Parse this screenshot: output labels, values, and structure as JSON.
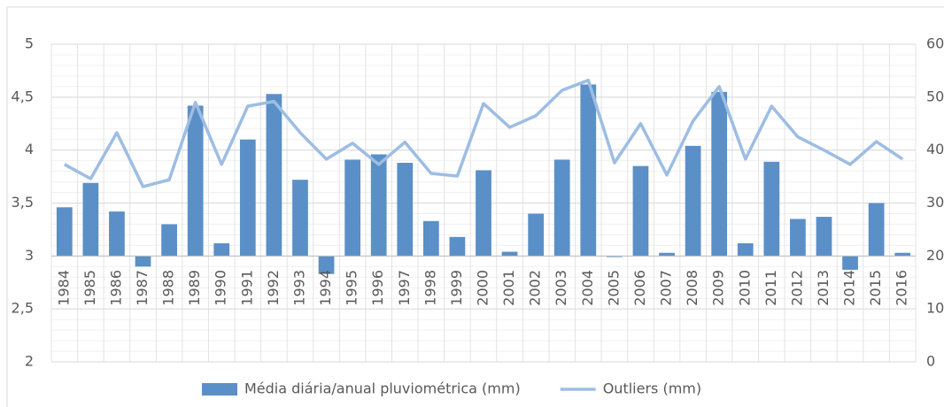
{
  "chart_data": {
    "type": "bar",
    "categories": [
      "1984",
      "1985",
      "1986",
      "1987",
      "1988",
      "1989",
      "1990",
      "1991",
      "1992",
      "1993",
      "1994",
      "1995",
      "1996",
      "1997",
      "1998",
      "1999",
      "2000",
      "2001",
      "2002",
      "2003",
      "2004",
      "2005",
      "2006",
      "2007",
      "2008",
      "2009",
      "2010",
      "2011",
      "2012",
      "2013",
      "2014",
      "2015",
      "2016"
    ],
    "series": [
      {
        "name": "Média diária/anual pluviométrica (mm)",
        "type": "bar",
        "color": "#5b8fc7",
        "values": [
          3.46,
          3.69,
          3.42,
          2.9,
          3.3,
          4.42,
          3.12,
          4.1,
          4.53,
          3.72,
          2.83,
          3.91,
          3.96,
          3.88,
          3.33,
          3.18,
          3.81,
          3.04,
          3.4,
          3.91,
          4.62,
          2.99,
          3.85,
          3.03,
          4.04,
          4.55,
          3.12,
          3.89,
          3.35,
          3.37,
          2.87,
          3.5,
          3.03
        ]
      },
      {
        "name": "Outliers (mm)",
        "type": "line",
        "axis": "y2",
        "color": "#9dbde3",
        "values": [
          37.3,
          34.6,
          43.3,
          33.1,
          34.4,
          49,
          37.3,
          48.3,
          49.2,
          43.3,
          38.3,
          41.3,
          37.3,
          41.5,
          35.6,
          35.1,
          48.8,
          44.3,
          46.5,
          51.3,
          53.2,
          37.6,
          45,
          35.3,
          45.5,
          52,
          38.3,
          48.3,
          42.5,
          40,
          37.3,
          41.6,
          38.3
        ]
      }
    ],
    "ylim": [
      2,
      5
    ],
    "yticks": [
      2,
      {
        "value": 2.5,
        "label": "2,5"
      },
      3,
      {
        "value": 3.5,
        "label": "3,5"
      },
      4,
      {
        "value": 4.5,
        "label": "4,5"
      },
      5
    ],
    "y2lim": [
      0,
      60
    ],
    "y2ticks": [
      0,
      10,
      20,
      30,
      40,
      50,
      60
    ],
    "x_axis_crosses": 3,
    "grid": true,
    "legend": "bottom"
  }
}
